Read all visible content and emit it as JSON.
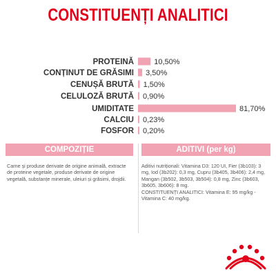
{
  "title": "CONSTITUENȚI ANALITICI",
  "chart_data": {
    "type": "bar",
    "orientation": "horizontal",
    "categories": [
      "PROTEINĂ",
      "CONȚINUT DE GRĂSIMI",
      "CENUȘĂ BRUTĂ",
      "CELULOZĂ BRUTĂ",
      "UMIDITATE",
      "CALCIU",
      "FOSFOR"
    ],
    "values": [
      10.5,
      3.5,
      1.5,
      0.9,
      81.7,
      0.23,
      0.2
    ],
    "value_labels": [
      "10,50%",
      "3,50%",
      "1,50%",
      "0,90%",
      "81,70%",
      "0,23%",
      "0,20%"
    ],
    "bar_color": "#f2a3b3",
    "title": "",
    "xlabel": "",
    "ylabel": "",
    "xlim": [
      0,
      81.7
    ],
    "grid": false,
    "legend": "none"
  },
  "composition": {
    "header": "COMPOZIȚIE",
    "text": "Carne și produse derivate de origine animală, extracte de proteine vegetale, produse derivate de origine vegetală, substanțe minerale, uleiuri și grăsimi, drojdii."
  },
  "additives": {
    "header": "ADITIVI (per kg)",
    "text": "Aditivi nutriționali: Vitamina D3: 120 UI, Fier (3b103): 3 mg, Iod (3b202): 0,3 mg, Cupru (3b405, 3b406): 2,4 mg, Mangan (3b502, 3b503, 3b504): 0,8 mg, Zinc (3b603, 3b605, 3b606): 8 mg.",
    "text2": "CONSTITUENȚI ANALITICI: Vitamina E: 95 mg/kg - Vitamina C: 40 mg/kg."
  },
  "logo": {
    "icon": "royal-canin-crown-logo",
    "color": "#e2001a"
  }
}
